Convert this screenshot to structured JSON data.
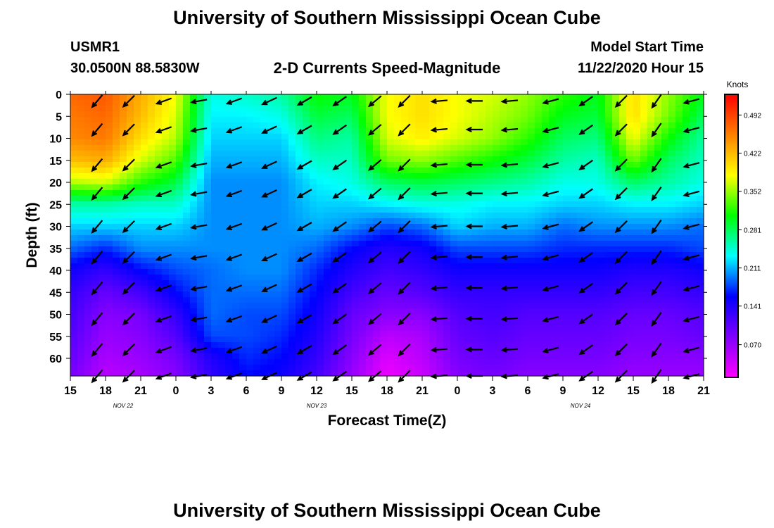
{
  "page": {
    "title_top": "University of Southern Mississippi Ocean Cube",
    "title_bottom": "University of Southern Mississippi Ocean Cube",
    "station_id": "USMR1",
    "station_coords": "30.0500N 88.5830W",
    "plot_title": "2-D Currents Speed-Magnitude",
    "model_start_label": "Model Start Time",
    "model_start_value": "11/22/2020 Hour 15"
  },
  "chart_data": {
    "type": "heatmap",
    "title": "2-D Currents Speed-Magnitude",
    "xlabel": "Forecast Time(Z)",
    "ylabel": "Depth (ft)",
    "x_unit": "hours since 11/22/2020 15Z",
    "xlim": [
      0,
      54
    ],
    "ylim": [
      0,
      64
    ],
    "x_tick_values": [
      0,
      3,
      6,
      9,
      12,
      15,
      18,
      21,
      24,
      27,
      30,
      33,
      36,
      39,
      42,
      45,
      48,
      51,
      54
    ],
    "x_tick_labels": [
      "15",
      "18",
      "21",
      "0",
      "3",
      "6",
      "9",
      "12",
      "15",
      "18",
      "21",
      "0",
      "3",
      "6",
      "9",
      "12",
      "15",
      "18",
      "21"
    ],
    "date_labels": [
      {
        "x": 4.5,
        "text": "NOV  22"
      },
      {
        "x": 21,
        "text": "NOV  23"
      },
      {
        "x": 43.5,
        "text": "NOV  24"
      }
    ],
    "y_tick_values": [
      0,
      5,
      10,
      15,
      20,
      25,
      30,
      35,
      40,
      45,
      50,
      55,
      60
    ],
    "y_tick_labels": [
      "0",
      "5",
      "10",
      "15",
      "20",
      "25",
      "30",
      "35",
      "40",
      "45",
      "50",
      "55",
      "60"
    ],
    "colorbar": {
      "title": "Knots",
      "min": 0.01,
      "max": 0.53,
      "tick_values": [
        0.07,
        0.141,
        0.211,
        0.281,
        0.352,
        0.422,
        0.492
      ],
      "tick_labels": [
        "0.070",
        "0.141",
        "0.211",
        "0.281",
        "0.352",
        "0.422",
        "0.492"
      ],
      "colors": [
        "#ff00ff",
        "#8000ff",
        "#0000ff",
        "#00ffff",
        "#00ff00",
        "#ffff00",
        "#ff8000",
        "#ff0000"
      ]
    },
    "speed_field": {
      "x": [
        0,
        3,
        6,
        9,
        12,
        15,
        18,
        21,
        24,
        27,
        30,
        33,
        36,
        39,
        42,
        45,
        48,
        51,
        54
      ],
      "y": [
        0,
        5,
        10,
        15,
        20,
        25,
        30,
        35,
        40,
        45,
        50,
        55,
        60,
        64
      ],
      "values": [
        [
          0.47,
          0.48,
          0.43,
          0.38,
          0.24,
          0.25,
          0.26,
          0.31,
          0.3,
          0.38,
          0.4,
          0.38,
          0.37,
          0.35,
          0.32,
          0.3,
          0.4,
          0.35,
          0.3
        ],
        [
          0.46,
          0.47,
          0.42,
          0.37,
          0.23,
          0.23,
          0.24,
          0.29,
          0.28,
          0.38,
          0.4,
          0.38,
          0.36,
          0.34,
          0.3,
          0.29,
          0.4,
          0.34,
          0.28
        ],
        [
          0.45,
          0.46,
          0.4,
          0.36,
          0.22,
          0.22,
          0.22,
          0.27,
          0.26,
          0.37,
          0.39,
          0.37,
          0.35,
          0.32,
          0.28,
          0.27,
          0.38,
          0.31,
          0.26
        ],
        [
          0.42,
          0.43,
          0.37,
          0.33,
          0.21,
          0.21,
          0.21,
          0.25,
          0.25,
          0.34,
          0.35,
          0.33,
          0.31,
          0.29,
          0.26,
          0.25,
          0.34,
          0.28,
          0.25
        ],
        [
          0.36,
          0.37,
          0.32,
          0.29,
          0.2,
          0.2,
          0.2,
          0.23,
          0.24,
          0.28,
          0.29,
          0.28,
          0.27,
          0.26,
          0.24,
          0.24,
          0.28,
          0.26,
          0.24
        ],
        [
          0.26,
          0.26,
          0.25,
          0.25,
          0.2,
          0.2,
          0.2,
          0.22,
          0.22,
          0.23,
          0.24,
          0.24,
          0.23,
          0.23,
          0.22,
          0.22,
          0.23,
          0.23,
          0.22
        ],
        [
          0.22,
          0.22,
          0.22,
          0.22,
          0.2,
          0.2,
          0.2,
          0.21,
          0.2,
          0.18,
          0.19,
          0.22,
          0.21,
          0.21,
          0.19,
          0.2,
          0.2,
          0.2,
          0.19
        ],
        [
          0.19,
          0.17,
          0.2,
          0.2,
          0.2,
          0.2,
          0.2,
          0.19,
          0.16,
          0.14,
          0.15,
          0.18,
          0.18,
          0.18,
          0.17,
          0.17,
          0.17,
          0.17,
          0.18
        ],
        [
          0.15,
          0.13,
          0.16,
          0.18,
          0.19,
          0.2,
          0.2,
          0.17,
          0.14,
          0.12,
          0.13,
          0.15,
          0.15,
          0.15,
          0.15,
          0.15,
          0.14,
          0.14,
          0.15
        ],
        [
          0.13,
          0.1,
          0.12,
          0.16,
          0.19,
          0.19,
          0.19,
          0.16,
          0.12,
          0.1,
          0.11,
          0.13,
          0.13,
          0.13,
          0.13,
          0.13,
          0.12,
          0.12,
          0.13
        ],
        [
          0.12,
          0.08,
          0.09,
          0.13,
          0.19,
          0.18,
          0.18,
          0.15,
          0.1,
          0.08,
          0.08,
          0.11,
          0.12,
          0.11,
          0.11,
          0.11,
          0.1,
          0.1,
          0.11
        ],
        [
          0.11,
          0.07,
          0.08,
          0.11,
          0.18,
          0.18,
          0.17,
          0.14,
          0.09,
          0.05,
          0.06,
          0.1,
          0.11,
          0.1,
          0.1,
          0.1,
          0.09,
          0.09,
          0.1
        ],
        [
          0.1,
          0.06,
          0.07,
          0.09,
          0.14,
          0.17,
          0.16,
          0.13,
          0.08,
          0.03,
          0.05,
          0.09,
          0.1,
          0.09,
          0.09,
          0.09,
          0.08,
          0.08,
          0.08
        ],
        [
          0.09,
          0.05,
          0.06,
          0.08,
          0.13,
          0.16,
          0.15,
          0.12,
          0.07,
          0.02,
          0.04,
          0.08,
          0.09,
          0.08,
          0.08,
          0.08,
          0.07,
          0.07,
          0.07
        ]
      ]
    },
    "current_vectors": {
      "x": [
        2.3,
        5.0,
        8.0,
        11.0,
        14.0,
        17.0,
        20.0,
        23.0,
        26.0,
        28.5,
        31.5,
        34.5,
        37.5,
        41.0,
        44.0,
        47.0,
        50.0,
        53.0
      ],
      "y": [
        1.5,
        8,
        16,
        22.5,
        30,
        37,
        44,
        51,
        58,
        64
      ],
      "direction_deg_by_column": [
        220,
        225,
        250,
        260,
        250,
        245,
        240,
        235,
        230,
        225,
        265,
        270,
        265,
        255,
        235,
        225,
        215,
        255
      ]
    }
  }
}
